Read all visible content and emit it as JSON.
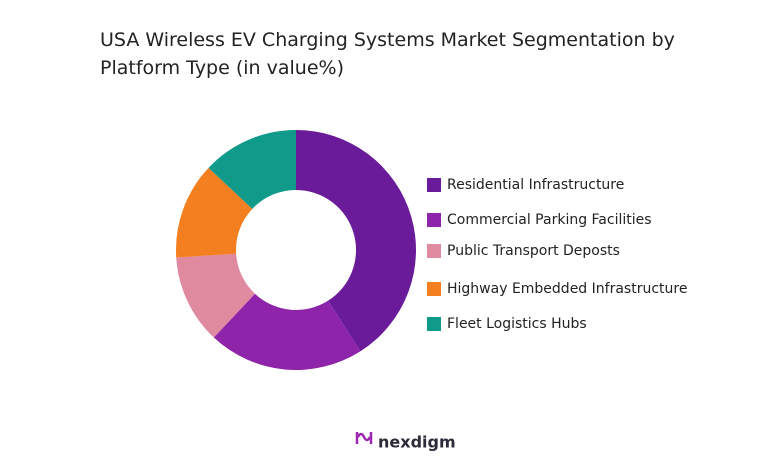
{
  "chart_data": {
    "type": "donut",
    "title": "USA Wireless EV Charging Systems Market Segmentation by Platform Type (in value%)",
    "categories": [
      "Residential Infrastructure",
      "Commercial Parking Facilities",
      "Public Transport Deposts",
      "Highway Embedded Infrastructure",
      "Fleet Logistics Hubs"
    ],
    "values": [
      41,
      21,
      12,
      13,
      13
    ],
    "colors": [
      "#6a1b9a",
      "#8e24aa",
      "#e08aa0",
      "#f47f20",
      "#0f9a8a"
    ],
    "legend": "right"
  },
  "brand": "nexdigm"
}
